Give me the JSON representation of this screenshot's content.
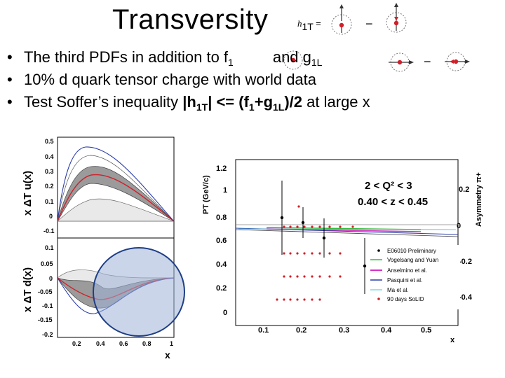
{
  "slide": {
    "title": "Transversity",
    "h1t_label": "h",
    "h1t_sub": "1T",
    "h1t_eq": "=",
    "minus": "−",
    "bullet1_a": "The third PDFs in addition to f",
    "bullet1_sub": "1",
    "bullet1_b": "and g",
    "bullet1_sub2": "1L",
    "bullet2": "10% d quark tensor charge with world data",
    "bullet3_a": "Test Soffer’s inequality ",
    "bullet3_b": "|h",
    "bullet3_sub1": "1T",
    "bullet3_c": "| <= (f",
    "bullet3_sub2": "1",
    "bullet3_d": "+g",
    "bullet3_sub3": "1L",
    "bullet3_e": ")/2",
    "bullet3_f": " at large x"
  },
  "left_plot": {
    "top_ylabel": "x ΔT u(x)",
    "bottom_ylabel": "x ΔT d(x)",
    "xlabel": "x",
    "top_yticks": [
      "0.5",
      "0.4",
      "0.3",
      "0.2",
      "0.1",
      "0",
      "-0.1"
    ],
    "bottom_yticks": [
      "0.1",
      "0.05",
      "0",
      "-0.05",
      "-0.1",
      "-0.15",
      "-0.2"
    ],
    "xticks": [
      "0.2",
      "0.4",
      "0.6",
      "0.8",
      "1"
    ]
  },
  "right_plot": {
    "ylabel": "PT (GeV/c)",
    "y2label": "Asymmetry π+",
    "xlabel": "x",
    "q2_label": "2 < Q² < 3",
    "z_label": "0.40 < z < 0.45",
    "yticks": [
      "1.2",
      "1",
      "0.8",
      "0.6",
      "0.4",
      "0.2",
      "0"
    ],
    "y2ticks": [
      "0.2",
      "0",
      "-0.2",
      "-0.4"
    ],
    "xticks": [
      "0.1",
      "0.2",
      "0.3",
      "0.4",
      "0.5"
    ],
    "legend": [
      "E06010 Preliminary",
      "Vogelsang and Yuan",
      "Anselmino et al.",
      "Pasquini et al.",
      "Ma et al.",
      "90 days SoLID"
    ]
  },
  "colors": {
    "accent_red": "#d0202a",
    "blue_curve": "#2c3fa8",
    "ellipse_fill": "#9fb3d8",
    "ellipse_stroke": "#1f3f86"
  }
}
